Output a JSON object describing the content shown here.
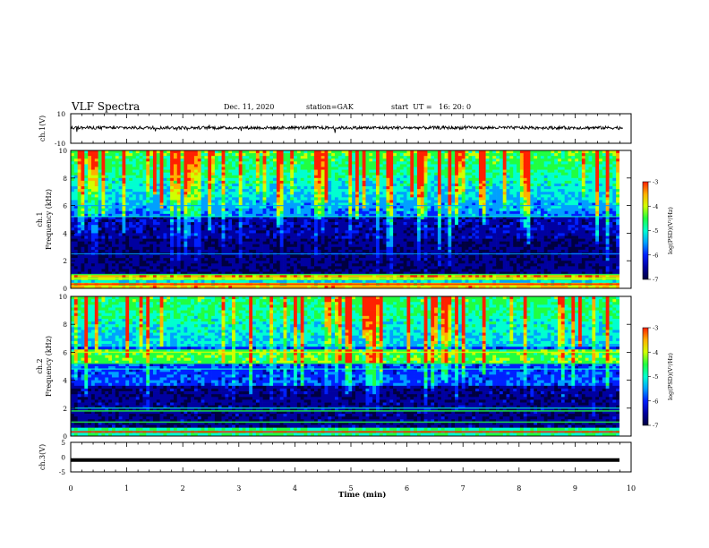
{
  "header": {
    "title": "VLF Spectra",
    "date": "Dec. 11, 2020",
    "station_label": "station=GAK",
    "start_label": "start  UT =   16: 20: 0"
  },
  "colors": {
    "spectrogram_scale": [
      "#000040",
      "#0000a0",
      "#0020ff",
      "#00a0ff",
      "#00ffd0",
      "#20ff40",
      "#d0ff00",
      "#ffb000",
      "#ff2000",
      "#ffffff"
    ],
    "line": "#000000",
    "background": "#ffffff"
  },
  "chart_data": [
    {
      "type": "line",
      "panel": "ch.1 waveform",
      "ylabel": "ch.1(V)",
      "ylim": [
        -10,
        10
      ],
      "y_ticks": [
        "10",
        "-10"
      ],
      "xlim": [
        0,
        10
      ],
      "note_values": "trace fluctuates around mean",
      "mean_value": 0.5,
      "amplitude": 1.5
    },
    {
      "type": "heatmap",
      "panel": "ch.1 spectrogram",
      "ylabel": "ch.1\nFrequency (kHz)",
      "ylim": [
        0,
        10
      ],
      "y_ticks": [
        "0",
        "2",
        "4",
        "6",
        "8",
        "10"
      ],
      "xlim": [
        0,
        9.85
      ],
      "colorbar": {
        "label": "log(PSD)(V²/Hz)",
        "range": [
          -7,
          -3
        ],
        "ticks": [
          "-3",
          "-4",
          "-5",
          "-6",
          "-7"
        ]
      },
      "bands_khz": [
        0.3,
        0.7,
        1.0,
        2.5,
        5.2,
        6.0
      ],
      "high_power_band_khz": [
        0,
        1.0
      ]
    },
    {
      "type": "heatmap",
      "panel": "ch.2 spectrogram",
      "ylabel": "ch.2\nFrequency (kHz)",
      "ylim": [
        0,
        10
      ],
      "y_ticks": [
        "0",
        "2",
        "4",
        "6",
        "8",
        "10"
      ],
      "xlim": [
        0,
        9.85
      ],
      "colorbar": {
        "label": "log(PSD)(V²/Hz)",
        "range": [
          -7,
          -3
        ],
        "ticks": [
          "-3",
          "-4",
          "-5",
          "-6",
          "-7"
        ]
      },
      "bands_khz": [
        0.3,
        1.0,
        1.8,
        2.0,
        4.8,
        5.2,
        6.0
      ],
      "high_power_band_khz": [
        5.3,
        6.3
      ]
    },
    {
      "type": "line",
      "panel": "ch.3 waveform",
      "ylabel": "ch.3(V)",
      "ylim": [
        -5,
        5
      ],
      "y_ticks": [
        "5",
        "0",
        "-5"
      ],
      "xlim": [
        0,
        10
      ],
      "constant_value": -1
    }
  ],
  "x_axis": {
    "label": "Time (min)",
    "ticks": [
      "0",
      "1",
      "2",
      "3",
      "4",
      "5",
      "6",
      "7",
      "8",
      "9",
      "10"
    ]
  }
}
